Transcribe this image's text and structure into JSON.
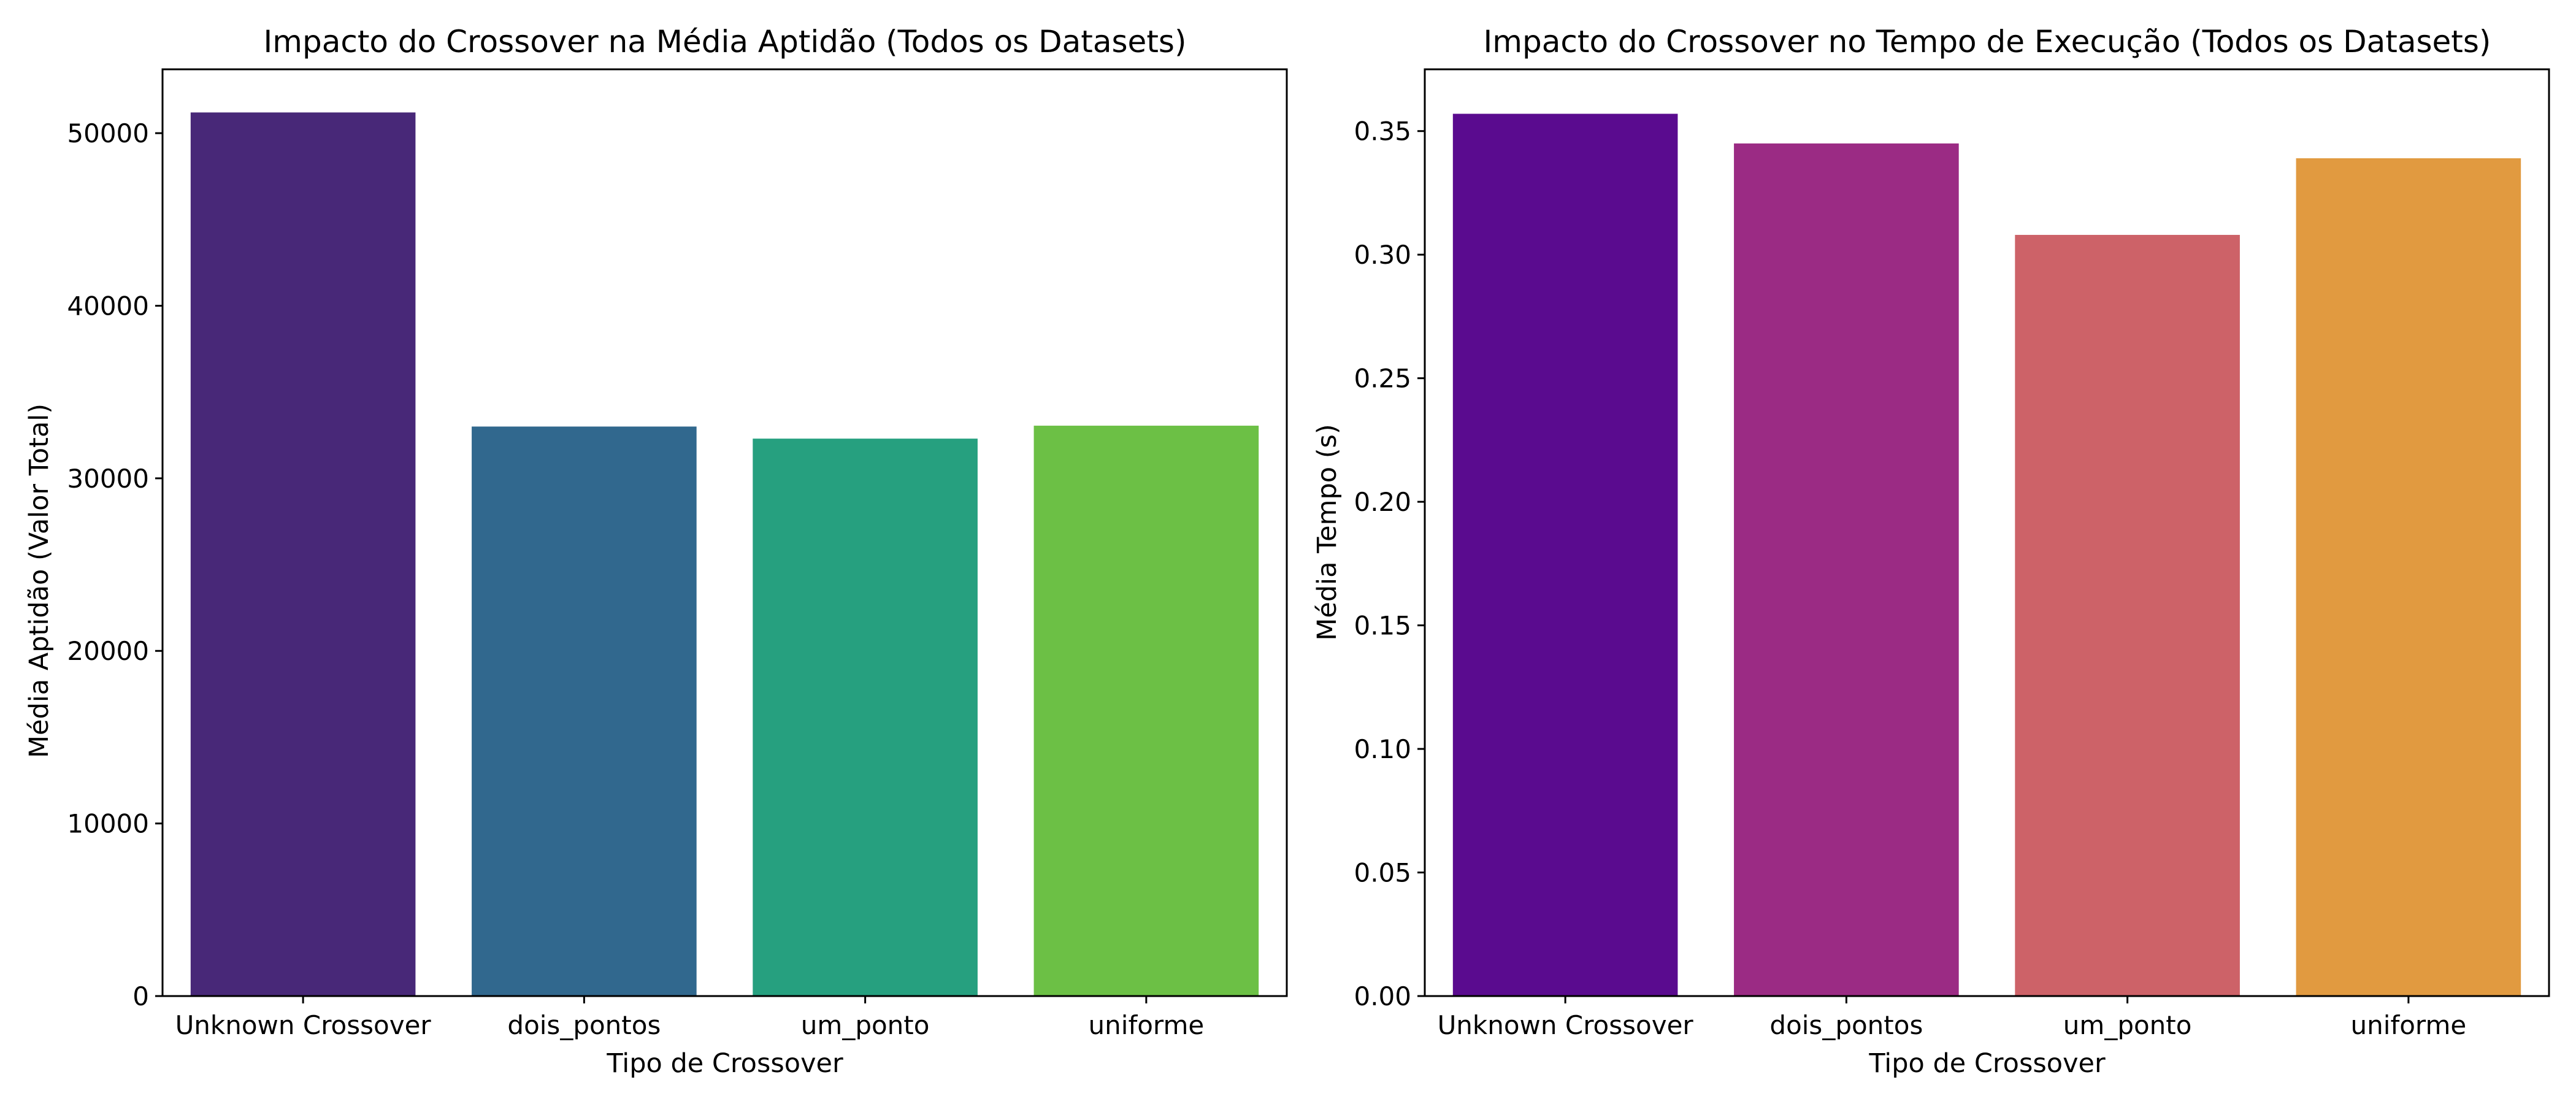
{
  "chart_data": [
    {
      "type": "bar",
      "title": "Impacto do Crossover na Média Aptidão (Todos os Datasets)",
      "xlabel": "Tipo de Crossover",
      "ylabel": "Média Aptidão (Valor Total)",
      "categories": [
        "Unknown Crossover",
        "dois_pontos",
        "um_ponto",
        "uniforme"
      ],
      "values": [
        51200,
        33000,
        32300,
        33050
      ],
      "colors": [
        "#482878",
        "#31688e",
        "#26a07f",
        "#6cc045"
      ],
      "ylim": [
        0,
        53700
      ],
      "yticks": [
        0,
        10000,
        20000,
        30000,
        40000,
        50000
      ],
      "ytick_labels": [
        "0",
        "10000",
        "20000",
        "30000",
        "40000",
        "50000"
      ],
      "grid": false,
      "legend": "none"
    },
    {
      "type": "bar",
      "title": "Impacto do Crossover no Tempo de Execução (Todos os Datasets)",
      "xlabel": "Tipo de Crossover",
      "ylabel": "Média Tempo (s)",
      "categories": [
        "Unknown Crossover",
        "dois_pontos",
        "um_ponto",
        "uniforme"
      ],
      "values": [
        0.357,
        0.345,
        0.308,
        0.339
      ],
      "colors": [
        "#5a0b8f",
        "#9b2b84",
        "#cd6268",
        "#e19a40"
      ],
      "ylim": [
        0,
        0.375
      ],
      "yticks": [
        0.0,
        0.05,
        0.1,
        0.15,
        0.2,
        0.25,
        0.3,
        0.35
      ],
      "ytick_labels": [
        "0.00",
        "0.05",
        "0.10",
        "0.15",
        "0.20",
        "0.25",
        "0.30",
        "0.35"
      ],
      "grid": false,
      "legend": "none"
    }
  ]
}
